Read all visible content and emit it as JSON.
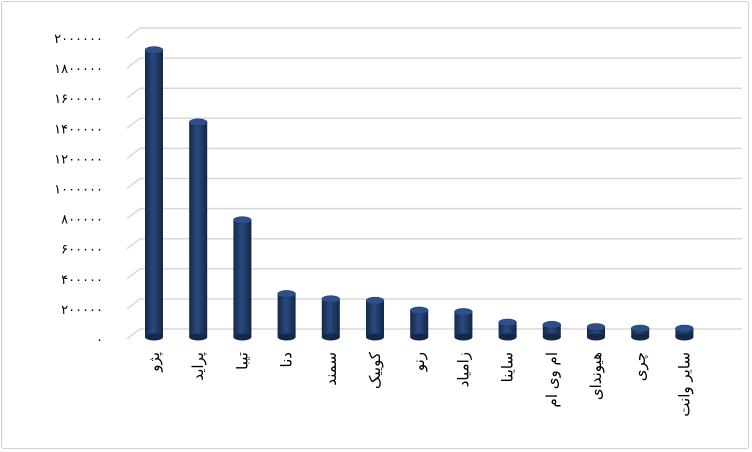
{
  "chart_data": {
    "type": "bar",
    "style": "3d-cylinder",
    "title": "",
    "xlabel": "",
    "ylabel": "",
    "ylim": [
      0,
      2000000
    ],
    "yticks": [
      0,
      200000,
      400000,
      600000,
      800000,
      1000000,
      1200000,
      1400000,
      1600000,
      1800000,
      2000000
    ],
    "ytick_labels": [
      "۰",
      "۲۰۰۰۰۰",
      "۴۰۰۰۰۰",
      "۶۰۰۰۰۰",
      "۸۰۰۰۰۰",
      "۱۰۰۰۰۰۰",
      "۱۲۰۰۰۰۰",
      "۱۴۰۰۰۰۰",
      "۱۶۰۰۰۰۰",
      "۱۸۰۰۰۰۰",
      "۲۰۰۰۰۰۰"
    ],
    "grid": true,
    "legend": "none",
    "categories": [
      "پژو",
      "پراید",
      "تیبا",
      "دنا",
      "سمند",
      "کوییک",
      "رنو",
      "زامیاد",
      "ساینا",
      "ام وی ام",
      "هیوندای",
      "چری",
      "سایر وانت"
    ],
    "values": [
      1920000,
      1440000,
      790000,
      300000,
      265000,
      255000,
      190000,
      180000,
      110000,
      95000,
      80000,
      70000,
      70000
    ],
    "colors": {
      "bar": "#1f3864",
      "bar_highlight": "#2e5089",
      "grid": "#d9d9d9"
    }
  }
}
